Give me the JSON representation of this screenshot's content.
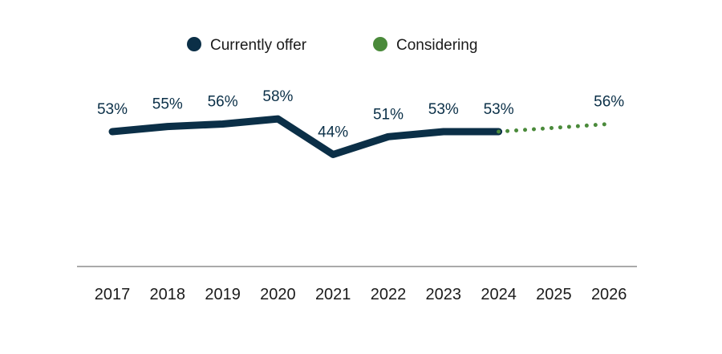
{
  "chart_data": {
    "type": "line",
    "categories": [
      "2017",
      "2018",
      "2019",
      "2020",
      "2021",
      "2022",
      "2023",
      "2024",
      "2025",
      "2026"
    ],
    "ylim": [
      0,
      100
    ],
    "grid": false,
    "legend_position": "top-center",
    "series": [
      {
        "name": "Currently offer",
        "color": "#0b2f47",
        "style": "solid",
        "points": [
          {
            "x": "2017",
            "y": 53,
            "label": "53%"
          },
          {
            "x": "2018",
            "y": 55,
            "label": "55%"
          },
          {
            "x": "2019",
            "y": 56,
            "label": "56%"
          },
          {
            "x": "2020",
            "y": 58,
            "label": "58%"
          },
          {
            "x": "2021",
            "y": 44,
            "label": "44%"
          },
          {
            "x": "2022",
            "y": 51,
            "label": "51%"
          },
          {
            "x": "2023",
            "y": 53,
            "label": "53%"
          },
          {
            "x": "2024",
            "y": 53,
            "label": "53%"
          }
        ]
      },
      {
        "name": "Considering",
        "color": "#4a8a3a",
        "style": "dotted",
        "points": [
          {
            "x": "2024",
            "y": 53,
            "label": ""
          },
          {
            "x": "2026",
            "y": 56,
            "label": "56%"
          }
        ]
      }
    ]
  }
}
